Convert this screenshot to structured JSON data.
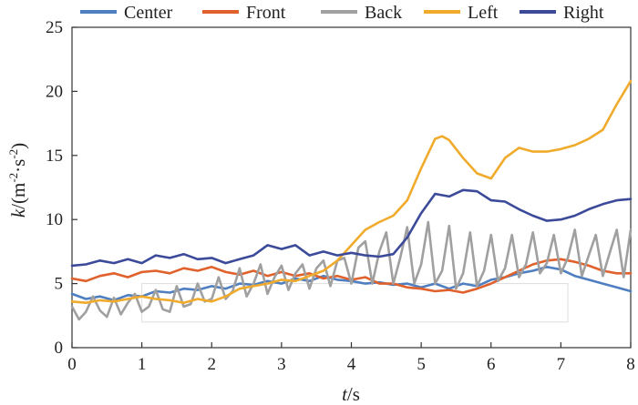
{
  "chart_data": {
    "type": "line",
    "title": "",
    "xlabel_var": "t",
    "xlabel_unit": "/s",
    "ylabel_var": "k",
    "ylabel_unit_a": "/(m",
    "ylabel_unit_sup1": "-2",
    "ylabel_unit_b": "·s",
    "ylabel_unit_sup2": "-2",
    "ylabel_unit_c": ")",
    "xlim": [
      0,
      8
    ],
    "ylim": [
      0,
      25
    ],
    "x_ticks": [
      "0",
      "1",
      "2",
      "3",
      "4",
      "5",
      "6",
      "7",
      "8"
    ],
    "y_ticks": [
      "0",
      "5",
      "10",
      "15",
      "20",
      "25"
    ],
    "grid": false,
    "legend_position": "top",
    "series": [
      {
        "name": "Center",
        "color": "#4f7fc0",
        "x": [
          0,
          0.2,
          0.4,
          0.6,
          0.8,
          1.0,
          1.2,
          1.4,
          1.6,
          1.8,
          2.0,
          2.2,
          2.4,
          2.6,
          2.8,
          3.0,
          3.2,
          3.4,
          3.6,
          3.8,
          4.0,
          4.2,
          4.4,
          4.6,
          4.8,
          5.0,
          5.2,
          5.4,
          5.6,
          5.8,
          6.0,
          6.2,
          6.4,
          6.6,
          6.8,
          7.0,
          7.2,
          7.4,
          7.6,
          7.8,
          8.0
        ],
        "y": [
          4.2,
          3.8,
          4.0,
          3.7,
          4.1,
          4.0,
          4.4,
          4.3,
          4.6,
          4.5,
          4.8,
          4.6,
          5.0,
          4.9,
          5.2,
          5.0,
          5.4,
          5.2,
          5.6,
          5.3,
          5.2,
          5.0,
          5.1,
          4.9,
          5.0,
          4.7,
          5.0,
          4.6,
          5.0,
          4.8,
          5.3,
          5.5,
          5.8,
          6.0,
          6.3,
          6.1,
          5.6,
          5.3,
          5.0,
          4.7,
          4.4
        ]
      },
      {
        "name": "Front",
        "color": "#e0612c",
        "x": [
          0,
          0.2,
          0.4,
          0.6,
          0.8,
          1.0,
          1.2,
          1.4,
          1.6,
          1.8,
          2.0,
          2.2,
          2.4,
          2.6,
          2.8,
          3.0,
          3.2,
          3.4,
          3.6,
          3.8,
          4.0,
          4.2,
          4.4,
          4.6,
          4.8,
          5.0,
          5.2,
          5.4,
          5.6,
          5.8,
          6.0,
          6.2,
          6.4,
          6.6,
          6.8,
          7.0,
          7.2,
          7.4,
          7.6,
          7.8,
          8.0
        ],
        "y": [
          5.4,
          5.2,
          5.6,
          5.8,
          5.5,
          5.9,
          6.0,
          5.8,
          6.2,
          6.0,
          6.3,
          5.9,
          5.7,
          6.0,
          5.6,
          5.9,
          5.6,
          5.8,
          5.4,
          5.6,
          5.3,
          5.5,
          5.0,
          5.0,
          4.7,
          4.6,
          4.4,
          4.5,
          4.3,
          4.6,
          5.0,
          5.5,
          6.0,
          6.5,
          6.8,
          6.9,
          6.7,
          6.4,
          6.0,
          5.8,
          5.8
        ]
      },
      {
        "name": "Back",
        "color": "#a0a0a0",
        "x": [
          0,
          0.1,
          0.2,
          0.3,
          0.4,
          0.5,
          0.6,
          0.7,
          0.8,
          0.9,
          1.0,
          1.1,
          1.2,
          1.3,
          1.4,
          1.5,
          1.6,
          1.7,
          1.8,
          1.9,
          2.0,
          2.1,
          2.2,
          2.3,
          2.4,
          2.5,
          2.6,
          2.7,
          2.8,
          2.9,
          3.0,
          3.1,
          3.2,
          3.3,
          3.4,
          3.5,
          3.6,
          3.7,
          3.8,
          3.9,
          4.0,
          4.1,
          4.2,
          4.3,
          4.4,
          4.5,
          4.6,
          4.7,
          4.8,
          4.9,
          5.0,
          5.1,
          5.2,
          5.3,
          5.4,
          5.5,
          5.6,
          5.7,
          5.8,
          5.9,
          6.0,
          6.1,
          6.2,
          6.3,
          6.4,
          6.5,
          6.6,
          6.7,
          6.8,
          6.9,
          7.0,
          7.1,
          7.2,
          7.3,
          7.4,
          7.5,
          7.6,
          7.7,
          7.8,
          7.9,
          8.0
        ],
        "y": [
          3.2,
          2.2,
          2.8,
          4.0,
          2.9,
          2.4,
          3.9,
          2.6,
          3.5,
          4.2,
          2.8,
          3.2,
          4.5,
          3.0,
          2.8,
          4.8,
          3.2,
          3.4,
          5.0,
          3.6,
          3.8,
          5.5,
          3.8,
          4.4,
          6.2,
          4.0,
          5.0,
          6.5,
          4.2,
          5.5,
          6.4,
          4.5,
          5.8,
          6.5,
          4.6,
          6.2,
          6.8,
          4.8,
          6.8,
          7.0,
          5.0,
          7.8,
          8.3,
          5.0,
          7.5,
          9.0,
          5.0,
          7.0,
          9.4,
          5.0,
          6.5,
          9.8,
          5.0,
          6.0,
          9.5,
          4.6,
          5.8,
          9.0,
          4.8,
          6.0,
          8.8,
          5.2,
          6.2,
          8.8,
          5.5,
          6.5,
          9.0,
          5.8,
          6.6,
          8.8,
          5.8,
          7.0,
          9.2,
          5.6,
          7.2,
          8.8,
          5.6,
          7.4,
          9.2,
          5.5,
          9.2
        ]
      },
      {
        "name": "Left",
        "color": "#f0ab2c",
        "x": [
          0,
          0.2,
          0.4,
          0.6,
          0.8,
          1.0,
          1.2,
          1.4,
          1.6,
          1.8,
          2.0,
          2.2,
          2.4,
          2.6,
          2.8,
          3.0,
          3.2,
          3.4,
          3.6,
          3.8,
          4.0,
          4.2,
          4.4,
          4.6,
          4.8,
          5.0,
          5.2,
          5.3,
          5.4,
          5.6,
          5.8,
          6.0,
          6.2,
          6.4,
          6.6,
          6.8,
          7.0,
          7.2,
          7.4,
          7.6,
          7.8,
          8.0
        ],
        "y": [
          3.6,
          3.5,
          3.7,
          3.6,
          3.8,
          4.0,
          3.8,
          3.7,
          3.5,
          3.8,
          3.6,
          4.0,
          4.6,
          4.8,
          5.0,
          5.3,
          5.2,
          5.6,
          6.0,
          6.8,
          8.0,
          9.2,
          9.8,
          10.3,
          11.5,
          14.0,
          16.3,
          16.5,
          16.2,
          14.8,
          13.6,
          13.2,
          14.8,
          15.6,
          15.3,
          15.3,
          15.5,
          15.8,
          16.3,
          17.0,
          19.0,
          20.8
        ]
      },
      {
        "name": "Right",
        "color": "#3c4a9a",
        "x": [
          0,
          0.2,
          0.4,
          0.6,
          0.8,
          1.0,
          1.2,
          1.4,
          1.6,
          1.8,
          2.0,
          2.2,
          2.4,
          2.6,
          2.8,
          3.0,
          3.2,
          3.4,
          3.6,
          3.8,
          4.0,
          4.2,
          4.4,
          4.6,
          4.8,
          5.0,
          5.2,
          5.4,
          5.6,
          5.8,
          6.0,
          6.2,
          6.4,
          6.6,
          6.8,
          7.0,
          7.2,
          7.4,
          7.6,
          7.8,
          8.0
        ],
        "y": [
          6.4,
          6.5,
          6.8,
          6.6,
          6.9,
          6.6,
          7.2,
          7.0,
          7.3,
          6.9,
          7.0,
          6.6,
          6.9,
          7.2,
          8.0,
          7.7,
          8.0,
          7.2,
          7.5,
          7.2,
          7.4,
          7.2,
          7.1,
          7.3,
          8.6,
          10.5,
          12.0,
          11.8,
          12.3,
          12.2,
          11.5,
          11.4,
          10.8,
          10.3,
          9.9,
          10.0,
          10.3,
          10.8,
          11.2,
          11.5,
          11.6
        ]
      }
    ]
  }
}
